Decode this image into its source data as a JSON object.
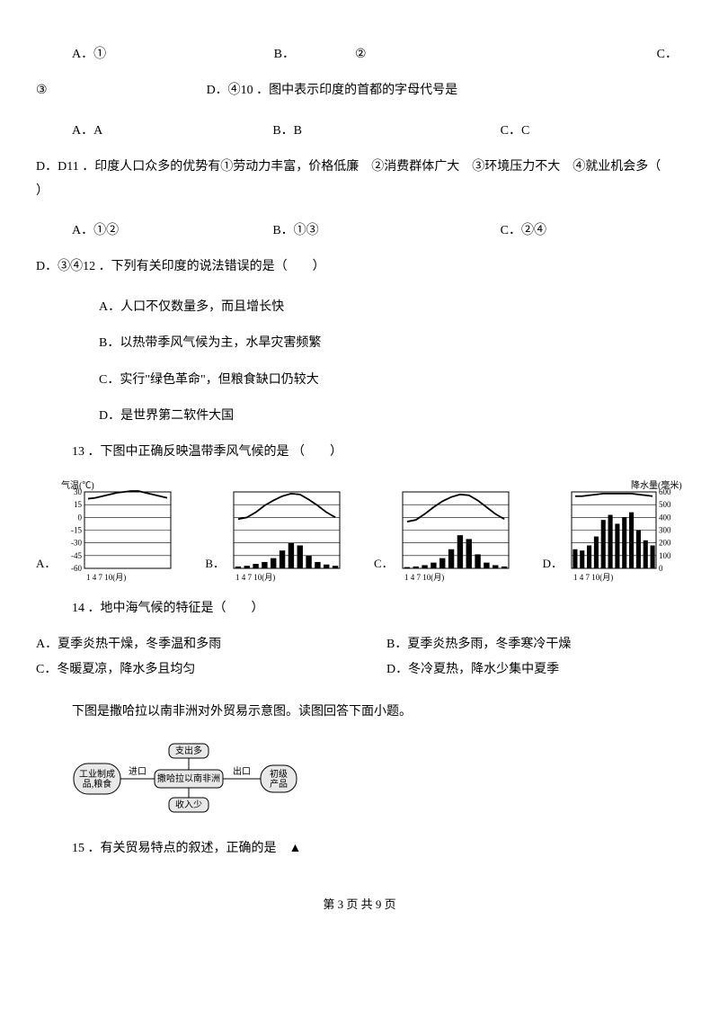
{
  "q9": {
    "optA": "A．①",
    "optB": "B．",
    "optBNum": "②",
    "optC": "C．",
    "optCNum": "③",
    "optD": "D．④10 ．图中表示印度的首都的字母代号是"
  },
  "q10": {
    "optA": "A．A",
    "optB": "B．B",
    "optC": "C．C",
    "lineD": "D．D11 ．印度人口众多的优势有①劳动力丰富，价格低廉　②消费群体广大　③环境压力不大　④就业机会多（　",
    "paren": "）"
  },
  "q11": {
    "optA": "A．①②",
    "optB": "B．①③",
    "optC": "C．②④",
    "lineD": "D．③④12 ．下列有关印度的说法错误的是（　　）"
  },
  "q12": {
    "a": "A．人口不仅数量多，而且增长快",
    "b": "B．以热带季风气候为主，水旱灾害频繁",
    "c": "C．实行\"绿色革命\"，但粮食缺口仍较大",
    "d": "D．是世界第二软件大国"
  },
  "q13": {
    "stem": "13 ．下图中正确反映温带季风气候的是 （　　）",
    "labelA": "A．",
    "labelB": "B．",
    "labelC": "C．",
    "labelD": "D．",
    "chartCommon": {
      "leftTitle": "气温(℃)",
      "rightTitle": "降水量(毫米)",
      "xLabel": "1  4  7  10(月)",
      "yTempTicks": [
        "30",
        "15",
        "0",
        "-15",
        "-30",
        "-45",
        "-60"
      ],
      "yPrecTicks": [
        "600",
        "500",
        "400",
        "300",
        "200",
        "100",
        "0"
      ],
      "gridColor": "#000000",
      "lineColor": "#000000",
      "barColor": "#000000",
      "bg": "#ffffff",
      "width": 130,
      "height": 115
    },
    "chartA": {
      "showLeftAxis": true,
      "showRightAxis": false,
      "temp": [
        22,
        23,
        25,
        27,
        29,
        30,
        31,
        31,
        29,
        27,
        25,
        23
      ],
      "precip": [
        0,
        0,
        0,
        0,
        0,
        0,
        0,
        0,
        0,
        0,
        0,
        0
      ]
    },
    "chartB": {
      "showLeftAxis": false,
      "showRightAxis": false,
      "temp": [
        -2,
        0,
        6,
        14,
        20,
        25,
        28,
        27,
        21,
        14,
        6,
        0
      ],
      "precip": [
        15,
        20,
        35,
        50,
        80,
        140,
        200,
        180,
        100,
        50,
        30,
        20
      ]
    },
    "chartC": {
      "showLeftAxis": false,
      "showRightAxis": false,
      "temp": [
        -5,
        -3,
        4,
        12,
        19,
        24,
        27,
        26,
        20,
        12,
        4,
        -2
      ],
      "precip": [
        10,
        15,
        25,
        45,
        80,
        150,
        260,
        230,
        110,
        45,
        25,
        15
      ]
    },
    "chartD": {
      "showLeftAxis": false,
      "showRightAxis": true,
      "temp": [
        25,
        25,
        26,
        27,
        28,
        28,
        28,
        28,
        28,
        27,
        26,
        25
      ],
      "precip": [
        150,
        140,
        180,
        250,
        380,
        420,
        350,
        400,
        440,
        300,
        220,
        180
      ]
    }
  },
  "q14": {
    "stem": "14 ．地中海气候的特征是（　　）",
    "a": "A．夏季炎热干燥，冬季温和多雨",
    "b": "B．夏季炎热多雨，冬季寒冷干燥",
    "c": "C．冬暖夏凉，降水多且均匀",
    "d": "D．冬冷夏热，降水少集中夏季"
  },
  "passage": "下图是撒哈拉以南非洲对外贸易示意图。读图回答下面小题。",
  "diagram": {
    "left": "工业制成\n品,粮食",
    "center": "撒哈拉以南非洲",
    "right": "初级\n产品",
    "top": "支出多",
    "bottom": "收入少",
    "inLabel": "进口",
    "outLabel": "出口",
    "border": "#000000",
    "bg": "#e8e8e8",
    "font": 10
  },
  "q15": {
    "stem": "15 ．有关贸易特点的叙述，正确的是　▲"
  },
  "footer": "第 3 页 共 9 页"
}
